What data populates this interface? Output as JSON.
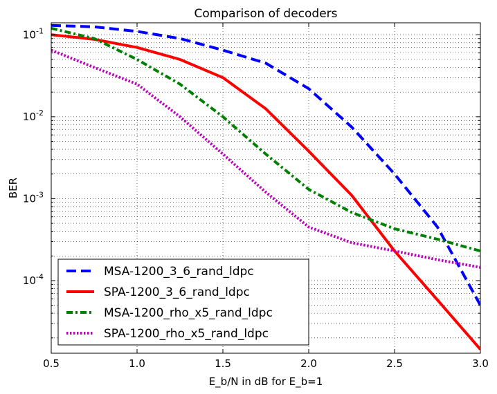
{
  "chart_data": {
    "type": "line",
    "title": "Comparison of decoders",
    "xlabel": "E_b/N in dB for E_b=1",
    "ylabel": "BER",
    "xlim": [
      0.5,
      3.0
    ],
    "ylim": [
      1.3e-05,
      0.14
    ],
    "yscale": "log",
    "grid": true,
    "legend_position": "bottom-left",
    "x_ticks": [
      "0.5",
      "1.0",
      "1.5",
      "2.0",
      "2.5",
      "3.0"
    ],
    "x_tick_values": [
      0.5,
      1.0,
      1.5,
      2.0,
      2.5,
      3.0
    ],
    "y_ticks": [
      {
        "base": "10",
        "exp": "-1",
        "value": 0.1
      },
      {
        "base": "10",
        "exp": "-2",
        "value": 0.01
      },
      {
        "base": "10",
        "exp": "-3",
        "value": 0.001
      },
      {
        "base": "10",
        "exp": "-4",
        "value": 0.0001
      }
    ],
    "series": [
      {
        "name": "MSA-1200_3_6_rand_ldpc",
        "color": "#0000ff",
        "dash": "dashed",
        "x": [
          0.5,
          0.75,
          1.0,
          1.25,
          1.5,
          1.75,
          2.0,
          2.25,
          2.5,
          2.75,
          3.0
        ],
        "y": [
          0.13,
          0.125,
          0.11,
          0.09,
          0.065,
          0.045,
          0.022,
          0.0075,
          0.002,
          0.00045,
          5e-05
        ]
      },
      {
        "name": "SPA-1200_3_6_rand_ldpc",
        "color": "#ff0000",
        "dash": "solid",
        "x": [
          0.5,
          0.75,
          1.0,
          1.25,
          1.5,
          1.75,
          2.0,
          2.25,
          2.5,
          2.75,
          3.0
        ],
        "y": [
          0.1,
          0.088,
          0.07,
          0.05,
          0.03,
          0.0125,
          0.0038,
          0.0011,
          0.00023,
          5.8e-05,
          1.45e-05
        ]
      },
      {
        "name": "MSA-1200_rho_x5_rand_ldpc",
        "color": "#008000",
        "dash": "dashdot",
        "x": [
          0.5,
          0.75,
          1.0,
          1.25,
          1.5,
          1.75,
          2.0,
          2.25,
          2.5,
          2.75,
          3.0
        ],
        "y": [
          0.12,
          0.09,
          0.05,
          0.025,
          0.01,
          0.0035,
          0.0013,
          0.00068,
          0.00043,
          0.00032,
          0.00023
        ]
      },
      {
        "name": "SPA-1200_rho_x5_rand_ldpc",
        "color": "#bf00bf",
        "dash": "dotted",
        "x": [
          0.5,
          0.75,
          1.0,
          1.25,
          1.5,
          1.75,
          2.0,
          2.25,
          2.5,
          2.75,
          3.0
        ],
        "y": [
          0.065,
          0.04,
          0.025,
          0.01,
          0.0035,
          0.0012,
          0.00045,
          0.00029,
          0.00023,
          0.00018,
          0.000145
        ]
      }
    ]
  }
}
